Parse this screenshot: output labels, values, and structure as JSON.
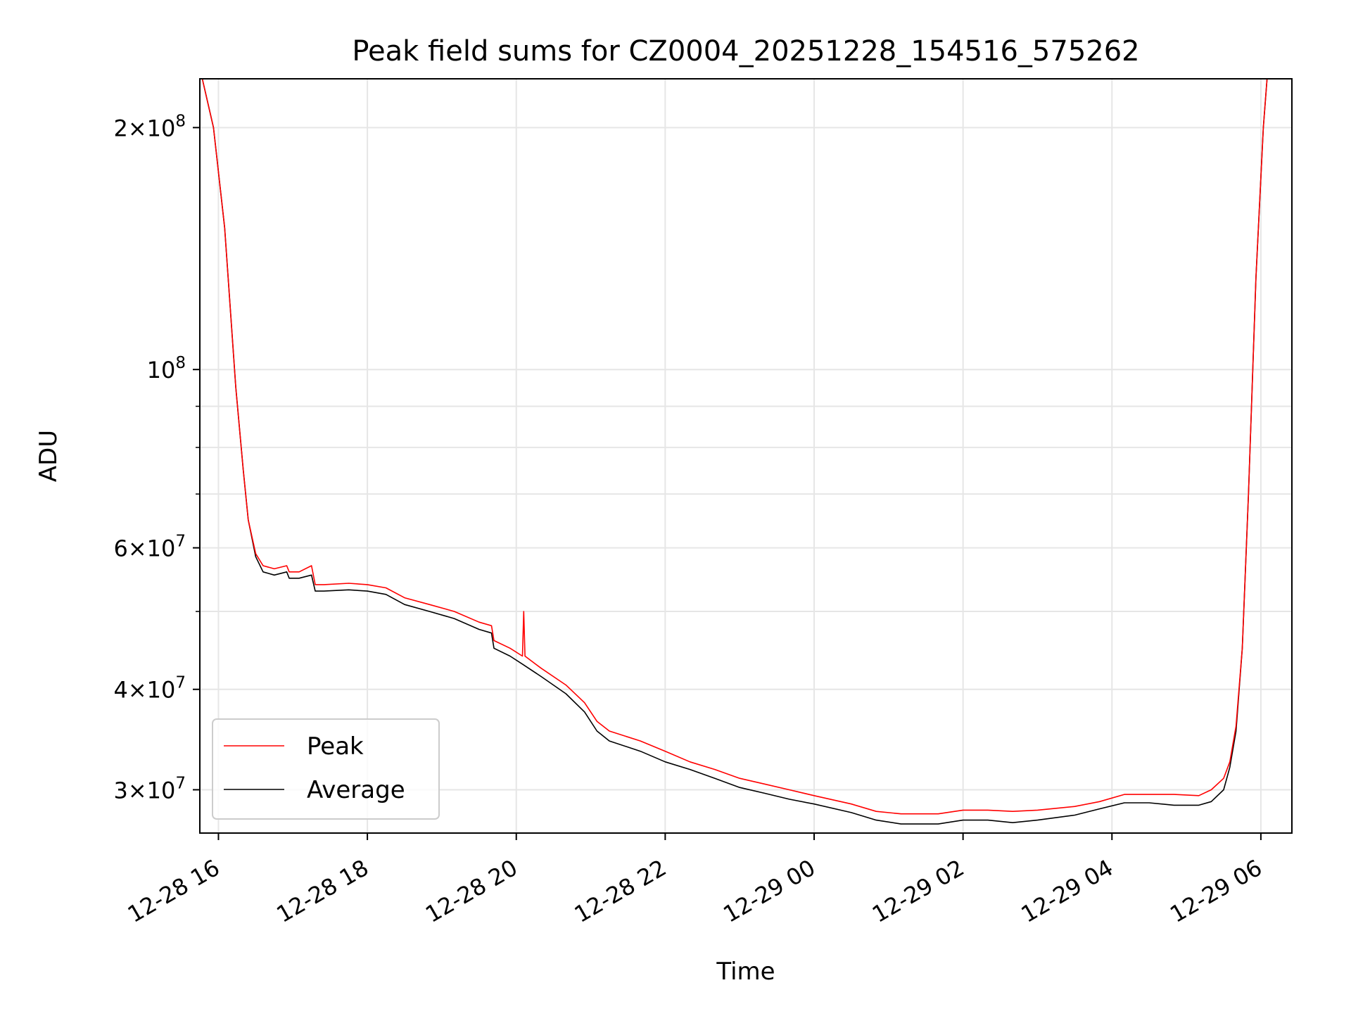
{
  "chart_data": {
    "type": "line",
    "title": "Peak field sums for CZ0004_20251228_154516_575262",
    "xlabel": "Time",
    "ylabel": "ADU",
    "yscale": "log",
    "xlim": [
      "2025-12-28T15:45",
      "2025-12-29T06:25"
    ],
    "ylim": [
      26500000,
      230000000
    ],
    "xticks": [
      {
        "value": "2025-12-28T16:00",
        "label": "12-28 16"
      },
      {
        "value": "2025-12-28T18:00",
        "label": "12-28 18"
      },
      {
        "value": "2025-12-28T20:00",
        "label": "12-28 20"
      },
      {
        "value": "2025-12-28T22:00",
        "label": "12-28 22"
      },
      {
        "value": "2025-12-29T00:00",
        "label": "12-29 00"
      },
      {
        "value": "2025-12-29T02:00",
        "label": "12-29 02"
      },
      {
        "value": "2025-12-29T04:00",
        "label": "12-29 04"
      },
      {
        "value": "2025-12-29T06:00",
        "label": "12-29 06"
      }
    ],
    "yticks": [
      {
        "value": 30000000,
        "mant": "3",
        "exp": "7"
      },
      {
        "value": 40000000,
        "mant": "4",
        "exp": "7"
      },
      {
        "value": 60000000,
        "mant": "6",
        "exp": "7"
      },
      {
        "value": 100000000,
        "mant": "",
        "exp": "8"
      },
      {
        "value": 200000000,
        "mant": "2",
        "exp": "8"
      }
    ],
    "yminor": [
      50000000,
      70000000,
      80000000,
      90000000
    ],
    "grid": true,
    "legend_position": "lower-left",
    "series": [
      {
        "name": "Peak",
        "color": "#ff0000",
        "x": [
          "2025-12-28T15:47",
          "2025-12-28T15:56",
          "2025-12-28T16:05",
          "2025-12-28T16:14",
          "2025-12-28T16:20",
          "2025-12-28T16:24",
          "2025-12-28T16:30",
          "2025-12-28T16:36",
          "2025-12-28T16:45",
          "2025-12-28T16:55",
          "2025-12-28T16:57",
          "2025-12-28T17:05",
          "2025-12-28T17:15",
          "2025-12-28T17:18",
          "2025-12-28T17:25",
          "2025-12-28T17:45",
          "2025-12-28T18:00",
          "2025-12-28T18:15",
          "2025-12-28T18:30",
          "2025-12-28T18:50",
          "2025-12-28T19:10",
          "2025-12-28T19:30",
          "2025-12-28T19:40",
          "2025-12-28T19:42",
          "2025-12-28T19:55",
          "2025-12-28T20:05",
          "2025-12-28T20:06",
          "2025-12-28T20:07",
          "2025-12-28T20:20",
          "2025-12-28T20:40",
          "2025-12-28T20:55",
          "2025-12-28T21:05",
          "2025-12-28T21:15",
          "2025-12-28T21:40",
          "2025-12-28T22:00",
          "2025-12-28T22:20",
          "2025-12-28T22:40",
          "2025-12-28T23:00",
          "2025-12-28T23:20",
          "2025-12-28T23:40",
          "2025-12-29T00:00",
          "2025-12-29T00:30",
          "2025-12-29T00:50",
          "2025-12-29T01:10",
          "2025-12-29T01:40",
          "2025-12-29T02:00",
          "2025-12-29T02:20",
          "2025-12-29T02:40",
          "2025-12-29T03:00",
          "2025-12-29T03:30",
          "2025-12-29T03:50",
          "2025-12-29T04:10",
          "2025-12-29T04:30",
          "2025-12-29T04:50",
          "2025-12-29T05:10",
          "2025-12-29T05:20",
          "2025-12-29T05:30",
          "2025-12-29T05:35",
          "2025-12-29T05:40",
          "2025-12-29T05:45",
          "2025-12-29T05:50",
          "2025-12-29T05:56",
          "2025-12-29T06:02",
          "2025-12-29T06:05"
        ],
        "y": [
          230000000,
          200000000,
          150000000,
          95000000,
          75000000,
          65000000,
          59000000,
          57000000,
          56500000,
          57000000,
          56000000,
          56000000,
          57000000,
          54000000,
          54000000,
          54200000,
          54000000,
          53500000,
          52000000,
          51000000,
          50000000,
          48500000,
          48000000,
          46000000,
          45000000,
          44000000,
          50000000,
          44000000,
          42500000,
          40500000,
          38500000,
          36500000,
          35500000,
          34500000,
          33500000,
          32500000,
          31800000,
          31000000,
          30500000,
          30000000,
          29500000,
          28800000,
          28200000,
          28000000,
          28000000,
          28300000,
          28300000,
          28200000,
          28300000,
          28600000,
          29000000,
          29600000,
          29600000,
          29600000,
          29500000,
          30000000,
          31000000,
          32500000,
          36000000,
          45000000,
          70000000,
          130000000,
          200000000,
          230000000
        ]
      },
      {
        "name": "Average",
        "color": "#000000",
        "x": [
          "2025-12-28T15:47",
          "2025-12-28T15:56",
          "2025-12-28T16:05",
          "2025-12-28T16:14",
          "2025-12-28T16:20",
          "2025-12-28T16:24",
          "2025-12-28T16:30",
          "2025-12-28T16:36",
          "2025-12-28T16:45",
          "2025-12-28T16:55",
          "2025-12-28T16:57",
          "2025-12-28T17:05",
          "2025-12-28T17:15",
          "2025-12-28T17:18",
          "2025-12-28T17:25",
          "2025-12-28T17:45",
          "2025-12-28T18:00",
          "2025-12-28T18:15",
          "2025-12-28T18:30",
          "2025-12-28T18:50",
          "2025-12-28T19:10",
          "2025-12-28T19:30",
          "2025-12-28T19:40",
          "2025-12-28T19:42",
          "2025-12-28T19:55",
          "2025-12-28T20:05",
          "2025-12-28T20:20",
          "2025-12-28T20:40",
          "2025-12-28T20:55",
          "2025-12-28T21:05",
          "2025-12-28T21:15",
          "2025-12-28T21:40",
          "2025-12-28T22:00",
          "2025-12-28T22:20",
          "2025-12-28T22:40",
          "2025-12-28T23:00",
          "2025-12-28T23:20",
          "2025-12-28T23:40",
          "2025-12-29T00:00",
          "2025-12-29T00:30",
          "2025-12-29T00:50",
          "2025-12-29T01:10",
          "2025-12-29T01:40",
          "2025-12-29T02:00",
          "2025-12-29T02:20",
          "2025-12-29T02:40",
          "2025-12-29T03:00",
          "2025-12-29T03:30",
          "2025-12-29T03:50",
          "2025-12-29T04:10",
          "2025-12-29T04:30",
          "2025-12-29T04:50",
          "2025-12-29T05:10",
          "2025-12-29T05:20",
          "2025-12-29T05:30",
          "2025-12-29T05:35",
          "2025-12-29T05:40",
          "2025-12-29T05:45",
          "2025-12-29T05:50",
          "2025-12-29T05:56",
          "2025-12-29T06:02",
          "2025-12-29T06:05"
        ],
        "y": [
          230000000,
          200000000,
          150000000,
          95000000,
          75000000,
          65000000,
          58500000,
          56000000,
          55500000,
          56000000,
          55000000,
          55000000,
          55500000,
          53000000,
          53000000,
          53200000,
          53000000,
          52500000,
          51000000,
          50000000,
          49000000,
          47500000,
          47000000,
          45000000,
          44000000,
          43000000,
          41500000,
          39500000,
          37500000,
          35500000,
          34500000,
          33500000,
          32500000,
          31800000,
          31000000,
          30200000,
          29700000,
          29200000,
          28800000,
          28100000,
          27500000,
          27200000,
          27200000,
          27500000,
          27500000,
          27300000,
          27500000,
          27900000,
          28400000,
          28900000,
          28900000,
          28700000,
          28700000,
          29000000,
          30000000,
          32000000,
          35500000,
          45000000,
          70000000,
          130000000,
          200000000,
          230000000
        ]
      }
    ]
  }
}
